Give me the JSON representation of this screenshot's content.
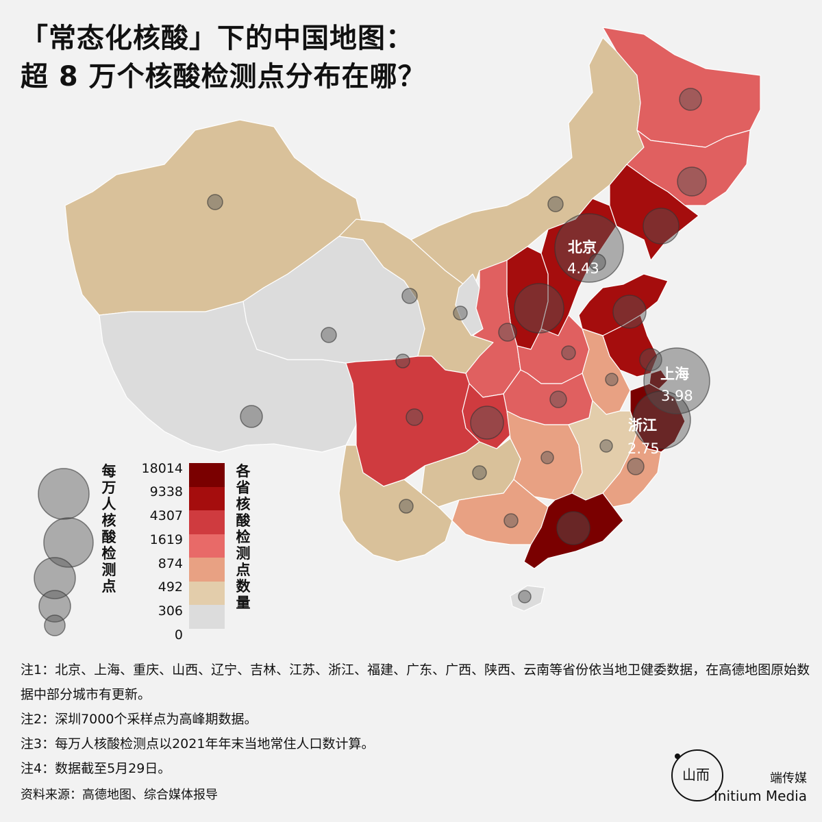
{
  "title": {
    "line1": "「常态化核酸」下的中国地图：",
    "line2": "超 8 万个核酸检测点分布在哪？"
  },
  "cities": [
    {
      "name": "北京",
      "value": "4.43"
    },
    {
      "name": "上海",
      "value": "3.98"
    },
    {
      "name": "浙江",
      "value": "2.75"
    }
  ],
  "legend": {
    "bubble_title": "每万人核酸检测点",
    "color_title": "各省核酸检测点数量",
    "thresholds": [
      "18014",
      "9338",
      "4307",
      "1619",
      "874",
      "492",
      "306",
      "0"
    ],
    "colors": [
      "#7a0000",
      "#a50d0d",
      "#cf3b3f",
      "#e86a68",
      "#e8a183",
      "#e3cdab",
      "#dcdcdc"
    ]
  },
  "notes": [
    "注1：北京、上海、重庆、山西、辽宁、吉林、江苏、浙江、福建、广东、广西、陕西、云南等省份依当地卫健委数据，在高德地图原始数据中部分城市有更新。",
    "注2：深圳7000个采样点为高峰期数据。",
    "注3：每万人核酸检测点以2021年年末当地常住人口数计算。",
    "注4：数据截至5月29日。"
  ],
  "source": "资料来源：高德地图、综合媒体报导",
  "brand": {
    "cn": "端传媒",
    "en": "Initium Media",
    "logo_glyph": "“山而"
  },
  "bubble_color": "#555555"
}
